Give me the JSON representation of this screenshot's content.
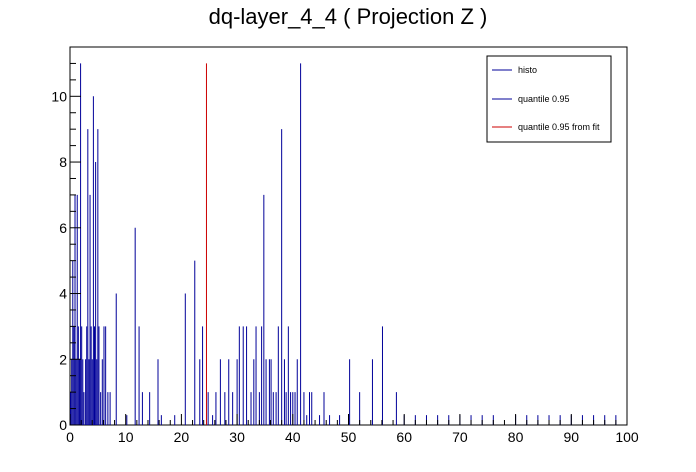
{
  "chart_data": {
    "type": "bar",
    "title": "dq-layer_4_4 ( Projection Z )",
    "xlabel": "",
    "ylabel": "",
    "xlim": [
      0,
      100
    ],
    "ylim": [
      0,
      11.5
    ],
    "x_ticks": [
      0,
      10,
      20,
      30,
      40,
      50,
      60,
      70,
      80,
      90,
      100
    ],
    "y_ticks": [
      0,
      2,
      4,
      6,
      8,
      10
    ],
    "grid": false,
    "legend_position": "top-right",
    "series": [
      {
        "name": "histo",
        "color": "#000099",
        "bars": [
          [
            0.1,
            1
          ],
          [
            0.3,
            2
          ],
          [
            0.5,
            5
          ],
          [
            0.7,
            3
          ],
          [
            0.9,
            7
          ],
          [
            1.1,
            2
          ],
          [
            1.3,
            7
          ],
          [
            1.5,
            3
          ],
          [
            1.7,
            2
          ],
          [
            1.9,
            11
          ],
          [
            2.1,
            3
          ],
          [
            2.3,
            2
          ],
          [
            2.5,
            1
          ],
          [
            2.8,
            2
          ],
          [
            3.0,
            3
          ],
          [
            3.2,
            9
          ],
          [
            3.4,
            2
          ],
          [
            3.6,
            7
          ],
          [
            3.8,
            3
          ],
          [
            4.0,
            2
          ],
          [
            4.2,
            10
          ],
          [
            4.4,
            3
          ],
          [
            4.6,
            8
          ],
          [
            4.8,
            2
          ],
          [
            5.0,
            9
          ],
          [
            5.2,
            3
          ],
          [
            5.5,
            1
          ],
          [
            5.8,
            2
          ],
          [
            6.1,
            3
          ],
          [
            6.4,
            3
          ],
          [
            6.8,
            1
          ],
          [
            7.2,
            1
          ],
          [
            8.3,
            4
          ],
          [
            10.2,
            0.3
          ],
          [
            11.7,
            6
          ],
          [
            12.4,
            3
          ],
          [
            13.0,
            1
          ],
          [
            14.3,
            1
          ],
          [
            15.8,
            2
          ],
          [
            16.4,
            0.3
          ],
          [
            18.8,
            0.3
          ],
          [
            20.7,
            4
          ],
          [
            22.4,
            5
          ],
          [
            23.3,
            2
          ],
          [
            23.8,
            3
          ],
          [
            24.8,
            1
          ],
          [
            25.6,
            0.3
          ],
          [
            26.2,
            1
          ],
          [
            27.0,
            2
          ],
          [
            27.8,
            1
          ],
          [
            28.5,
            2
          ],
          [
            29.2,
            1
          ],
          [
            30.0,
            2
          ],
          [
            30.4,
            3
          ],
          [
            31.1,
            3
          ],
          [
            31.7,
            3
          ],
          [
            32.5,
            1
          ],
          [
            33.0,
            2
          ],
          [
            33.4,
            3
          ],
          [
            34.0,
            1
          ],
          [
            34.4,
            3
          ],
          [
            34.8,
            7
          ],
          [
            35.2,
            2
          ],
          [
            35.8,
            2
          ],
          [
            36.1,
            2
          ],
          [
            36.5,
            1
          ],
          [
            37.0,
            1
          ],
          [
            37.4,
            3
          ],
          [
            38.0,
            9
          ],
          [
            38.5,
            2
          ],
          [
            38.8,
            1
          ],
          [
            39.2,
            3
          ],
          [
            39.6,
            1
          ],
          [
            40.0,
            1
          ],
          [
            40.4,
            1
          ],
          [
            40.8,
            2
          ],
          [
            41.4,
            11
          ],
          [
            42.0,
            1
          ],
          [
            42.5,
            0.3
          ],
          [
            43.0,
            1
          ],
          [
            43.4,
            1
          ],
          [
            44.8,
            0.3
          ],
          [
            45.6,
            1
          ],
          [
            46.6,
            0.3
          ],
          [
            48.4,
            0.3
          ],
          [
            50.2,
            2
          ],
          [
            52.0,
            1
          ],
          [
            54.3,
            2
          ],
          [
            56.1,
            3
          ],
          [
            58.6,
            1
          ],
          [
            60.0,
            0.3
          ],
          [
            62.0,
            0.3
          ],
          [
            64.0,
            0.3
          ],
          [
            66.0,
            0.3
          ],
          [
            68.0,
            0.3
          ],
          [
            70.0,
            0.3
          ],
          [
            72.0,
            0.3
          ],
          [
            74.0,
            0.3
          ],
          [
            76.0,
            0.3
          ],
          [
            80.0,
            0.3
          ],
          [
            82.0,
            0.3
          ],
          [
            84.0,
            0.3
          ],
          [
            86.0,
            0.3
          ],
          [
            88.0,
            0.3
          ],
          [
            90.0,
            0.3
          ],
          [
            92.0,
            0.3
          ],
          [
            94.0,
            0.3
          ],
          [
            96.0,
            0.3
          ],
          [
            98.0,
            0.3
          ]
        ]
      },
      {
        "name": "quantile 0.95",
        "color": "#000099",
        "x": null
      },
      {
        "name": "quantile 0.95 from fit",
        "color": "#cc0000",
        "x": 24.5,
        "y": 11
      }
    ]
  }
}
